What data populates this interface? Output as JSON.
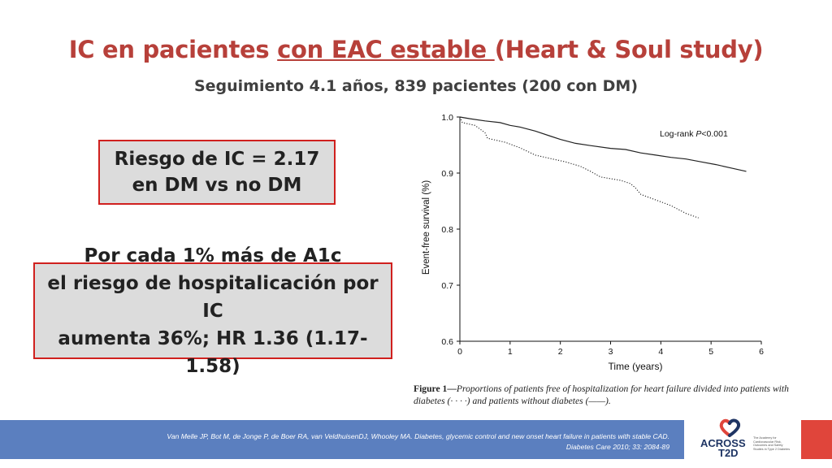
{
  "slide": {
    "title_part1": "IC en pacientes ",
    "title_underlined": "con EAC estable ",
    "title_part2": "(Heart & Soul study)",
    "subtitle": "Seguimiento 4.1 años, 839 pacientes (200 con DM)",
    "box1": {
      "line1": "Riesgo de IC = 2.17",
      "line2": "en DM vs no DM"
    },
    "box2": {
      "line1": "Por cada 1% más de A1c",
      "line2": "el riesgo de hospitalicación por IC",
      "line3": "aumenta 36%; HR 1.36 (1.17-1.58)"
    },
    "caption": {
      "label": "Figure 1—",
      "text": "Proportions of patients free of hospitalization for heart failure divided into patients with diabetes (· · · ·) and patients without diabetes (——)."
    },
    "footer": {
      "reference": "Van Melle JP, Bot M, de Jonge P, de Boer RA, van VeldhuisenDJ, Whooley MA. Diabetes, glycemic control and new onset heart failure in patients with stable CAD.",
      "journal": "Diabetes Care 2010; 33: 2084-89"
    },
    "logo": {
      "name_top": "ACROSS",
      "name_bottom": "T2D",
      "tagline": "The Academy for Cardiovascular Risk, Outcomes and Safety Studies in Type 2 Diabetes",
      "icon": "heart-logo-icon",
      "colors": {
        "navy": "#1f3564",
        "red": "#e0453b"
      }
    },
    "colors": {
      "title": "#b7403a",
      "box_border": "#d0201e",
      "box_fill": "#dcdcdc",
      "footer": "#5b7fbf"
    }
  },
  "chart_data": {
    "type": "line",
    "xlabel": "Time (years)",
    "ylabel": "Event-free survival (%)",
    "xlim": [
      0,
      6
    ],
    "ylim": [
      0.6,
      1.0
    ],
    "x_ticks": [
      "0",
      "1",
      "2",
      "3",
      "4",
      "5",
      "6"
    ],
    "y_ticks": [
      "0.6",
      "0.7",
      "0.8",
      "0.9",
      "1.0"
    ],
    "annotation": {
      "prefix": "Log-rank ",
      "p_label": "P",
      "suffix": "<0.001"
    },
    "grid": false,
    "series": [
      {
        "style": "solid",
        "points": [
          [
            0,
            1.0
          ],
          [
            0.2,
            0.997
          ],
          [
            0.5,
            0.993
          ],
          [
            0.8,
            0.99
          ],
          [
            1.0,
            0.985
          ],
          [
            1.2,
            0.982
          ],
          [
            1.5,
            0.975
          ],
          [
            1.8,
            0.966
          ],
          [
            2.0,
            0.96
          ],
          [
            2.3,
            0.953
          ],
          [
            2.6,
            0.949
          ],
          [
            3.0,
            0.944
          ],
          [
            3.3,
            0.942
          ],
          [
            3.6,
            0.936
          ],
          [
            3.9,
            0.932
          ],
          [
            4.2,
            0.928
          ],
          [
            4.5,
            0.925
          ],
          [
            4.8,
            0.92
          ],
          [
            5.1,
            0.915
          ],
          [
            5.4,
            0.909
          ],
          [
            5.7,
            0.903
          ]
        ]
      },
      {
        "style": "dotted",
        "points": [
          [
            0,
            1.0
          ],
          [
            0.05,
            0.99
          ],
          [
            0.3,
            0.985
          ],
          [
            0.5,
            0.972
          ],
          [
            0.55,
            0.962
          ],
          [
            0.9,
            0.955
          ],
          [
            1.2,
            0.945
          ],
          [
            1.5,
            0.932
          ],
          [
            1.8,
            0.926
          ],
          [
            2.1,
            0.92
          ],
          [
            2.4,
            0.912
          ],
          [
            2.6,
            0.903
          ],
          [
            2.8,
            0.893
          ],
          [
            3.2,
            0.887
          ],
          [
            3.4,
            0.881
          ],
          [
            3.5,
            0.873
          ],
          [
            3.6,
            0.862
          ],
          [
            3.9,
            0.852
          ],
          [
            4.2,
            0.842
          ],
          [
            4.5,
            0.828
          ],
          [
            4.75,
            0.82
          ]
        ]
      }
    ]
  }
}
